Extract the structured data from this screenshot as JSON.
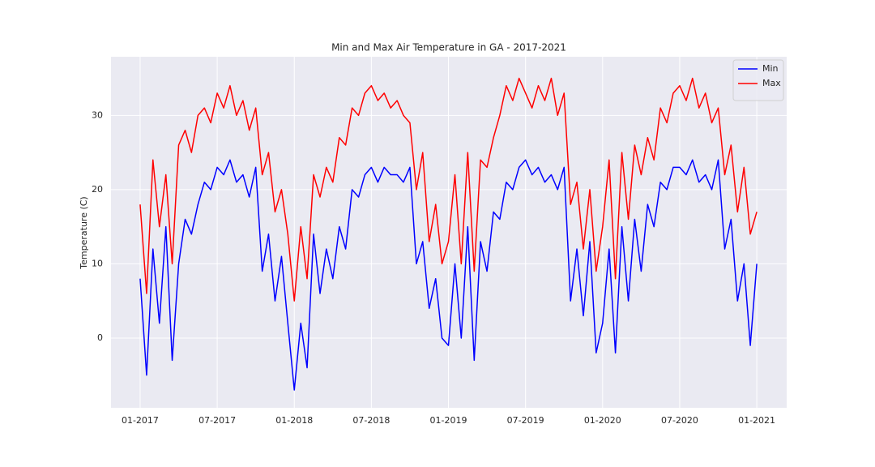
{
  "chart_data": {
    "type": "line",
    "title": "Min and Max Air Temperature in GA - 2017-2021",
    "y_label": "Temperature (C)",
    "x": [
      2017,
      2017.042,
      2017.083,
      2017.125,
      2017.167,
      2017.208,
      2017.25,
      2017.292,
      2017.333,
      2017.375,
      2017.417,
      2017.458,
      2017.5,
      2017.542,
      2017.583,
      2017.625,
      2017.667,
      2017.708,
      2017.75,
      2017.792,
      2017.833,
      2017.875,
      2017.917,
      2017.958,
      2018,
      2018.042,
      2018.083,
      2018.125,
      2018.167,
      2018.208,
      2018.25,
      2018.292,
      2018.333,
      2018.375,
      2018.417,
      2018.458,
      2018.5,
      2018.542,
      2018.583,
      2018.625,
      2018.667,
      2018.708,
      2018.75,
      2018.792,
      2018.833,
      2018.875,
      2018.917,
      2018.958,
      2019,
      2019.042,
      2019.083,
      2019.125,
      2019.167,
      2019.208,
      2019.25,
      2019.292,
      2019.333,
      2019.375,
      2019.417,
      2019.458,
      2019.5,
      2019.542,
      2019.583,
      2019.625,
      2019.667,
      2019.708,
      2019.75,
      2019.792,
      2019.833,
      2019.875,
      2019.917,
      2019.958,
      2020,
      2020.042,
      2020.083,
      2020.125,
      2020.167,
      2020.208,
      2020.25,
      2020.292,
      2020.333,
      2020.375,
      2020.417,
      2020.458,
      2020.5,
      2020.542,
      2020.583,
      2020.625,
      2020.667,
      2020.708,
      2020.75,
      2020.792,
      2020.833,
      2020.875,
      2020.917,
      2020.958,
      2021
    ],
    "series": [
      {
        "name": "Min",
        "color": "#0000ff",
        "values": [
          8,
          -5,
          12,
          2,
          15,
          -3,
          10,
          16,
          14,
          18,
          21,
          20,
          23,
          22,
          24,
          21,
          22,
          19,
          23,
          9,
          14,
          5,
          11,
          2,
          -7,
          2,
          -4,
          14,
          6,
          12,
          8,
          15,
          12,
          20,
          19,
          22,
          23,
          21,
          23,
          22,
          22,
          21,
          23,
          10,
          13,
          4,
          8,
          0,
          -1,
          10,
          0,
          15,
          -3,
          13,
          9,
          17,
          16,
          21,
          20,
          23,
          24,
          22,
          23,
          21,
          22,
          20,
          23,
          5,
          12,
          3,
          13,
          -2,
          2,
          12,
          -2,
          15,
          5,
          16,
          9,
          18,
          15,
          21,
          20,
          23,
          23,
          22,
          24,
          21,
          22,
          20,
          24,
          12,
          16,
          5,
          10,
          -1,
          10
        ]
      },
      {
        "name": "Max",
        "color": "#ff0000",
        "values": [
          18,
          6,
          24,
          15,
          22,
          10,
          26,
          28,
          25,
          30,
          31,
          29,
          33,
          31,
          34,
          30,
          32,
          28,
          31,
          22,
          25,
          17,
          20,
          14,
          5,
          15,
          8,
          22,
          19,
          23,
          21,
          27,
          26,
          31,
          30,
          33,
          34,
          32,
          33,
          31,
          32,
          30,
          29,
          20,
          25,
          13,
          18,
          10,
          13,
          22,
          10,
          25,
          9,
          24,
          23,
          27,
          30,
          34,
          32,
          35,
          33,
          31,
          34,
          32,
          35,
          30,
          33,
          18,
          21,
          12,
          20,
          9,
          15,
          24,
          8,
          25,
          16,
          26,
          22,
          27,
          24,
          31,
          29,
          33,
          34,
          32,
          35,
          31,
          33,
          29,
          31,
          22,
          26,
          17,
          23,
          14,
          17
        ]
      }
    ],
    "xlim": [
      2016.811,
      2021.194
    ],
    "xticks": [
      {
        "value": 2017,
        "label": "01-2017"
      },
      {
        "value": 2017.5,
        "label": "07-2017"
      },
      {
        "value": 2018,
        "label": "01-2018"
      },
      {
        "value": 2018.5,
        "label": "07-2018"
      },
      {
        "value": 2019,
        "label": "01-2019"
      },
      {
        "value": 2019.5,
        "label": "07-2019"
      },
      {
        "value": 2020,
        "label": "01-2020"
      },
      {
        "value": 2020.5,
        "label": "07-2020"
      },
      {
        "value": 2021,
        "label": "01-2021"
      }
    ],
    "ylim": [
      -9.4,
      37.9
    ],
    "yticks": [
      0,
      10,
      20,
      30
    ],
    "grid": true,
    "legend": "upper right"
  }
}
